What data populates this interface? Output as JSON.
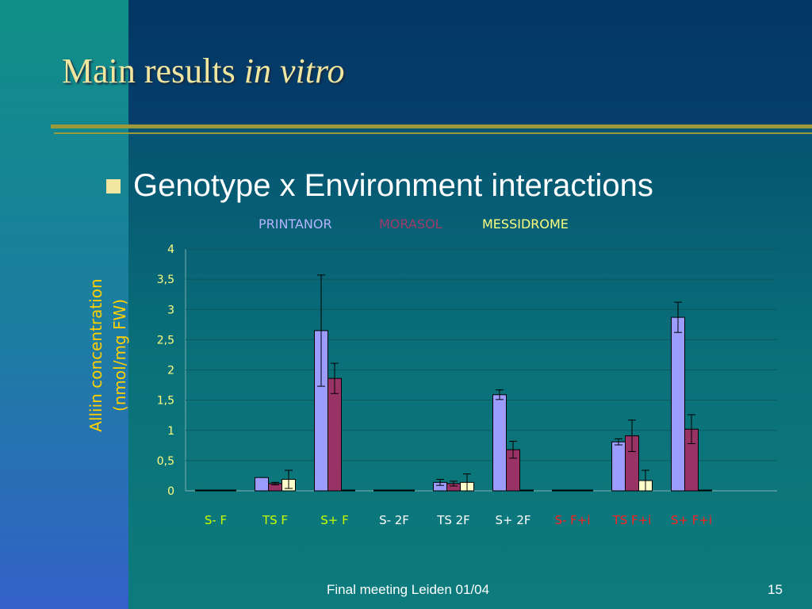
{
  "slide": {
    "title_main": "Main results ",
    "title_italic": "in vitro",
    "bullet": "Genotype x Environment interactions",
    "footer": "Final meeting Leiden 01/04",
    "page_number": "15"
  },
  "colors": {
    "title": "#f0e6a0",
    "legend_printanor": "#b4b4ff",
    "legend_morasol": "#a03a6a",
    "legend_messidrome": "#ffff80",
    "cat_green": "#c8ff00",
    "cat_white": "#ffffff",
    "cat_red": "#ff2020"
  },
  "chart_data": {
    "type": "bar",
    "ylabel_line1": "Alliin concentration",
    "ylabel_line2": "(nmol/mg FW)",
    "ylim": [
      0,
      4
    ],
    "yticks": [
      "0",
      "0,5",
      "1",
      "1,5",
      "2",
      "2,5",
      "3",
      "3,5",
      "4"
    ],
    "grid": true,
    "legend_position": "top",
    "categories": [
      {
        "label": "S- F",
        "color": "#c8ff00"
      },
      {
        "label": "TS F",
        "color": "#c8ff00"
      },
      {
        "label": "S+ F",
        "color": "#c8ff00"
      },
      {
        "label": "S- 2F",
        "color": "#ffffff"
      },
      {
        "label": "TS 2F",
        "color": "#ffffff"
      },
      {
        "label": "S+ 2F",
        "color": "#ffffff"
      },
      {
        "label": "S- F+i",
        "color": "#ff2020"
      },
      {
        "label": "TS F+i",
        "color": "#ff2020"
      },
      {
        "label": "S+ F+i",
        "color": "#ff2020"
      }
    ],
    "series": [
      {
        "name": "PRINTANOR",
        "color": "#9c9cff",
        "values": [
          0,
          0.22,
          2.65,
          0,
          0.14,
          1.59,
          0,
          0.81,
          2.87
        ],
        "errors": [
          0,
          0,
          0.92,
          0,
          0.05,
          0.08,
          0,
          0.05,
          0.25
        ]
      },
      {
        "name": "MORASOL",
        "color": "#993366",
        "values": [
          0,
          0.12,
          1.86,
          0,
          0.12,
          0.68,
          0,
          0.91,
          1.02
        ],
        "errors": [
          0,
          0.02,
          0.25,
          0,
          0.04,
          0.14,
          0,
          0.26,
          0.24
        ]
      },
      {
        "name": "MESSIDROME",
        "color": "#ffffcc",
        "values": [
          0,
          0.19,
          0,
          0,
          0.14,
          0,
          0,
          0.17,
          0
        ],
        "errors": [
          0,
          0.15,
          0,
          0,
          0.14,
          0,
          0,
          0.17,
          0
        ]
      }
    ]
  }
}
